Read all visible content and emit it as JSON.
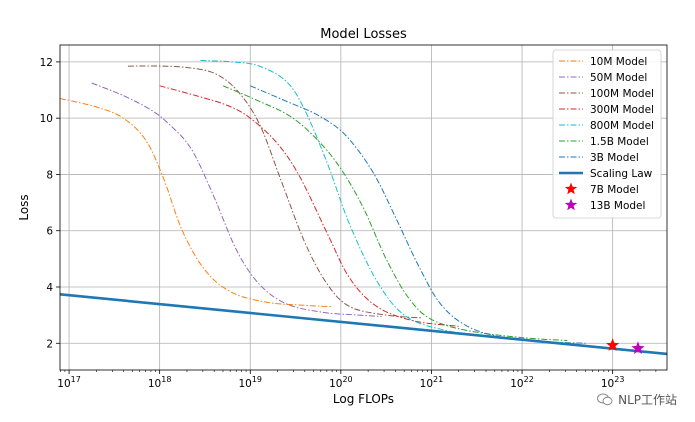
{
  "chart_data": {
    "type": "line",
    "title": "Model Losses",
    "xlabel": "Log FLOPs",
    "ylabel": "Loss",
    "x_scale": "log10",
    "xlim_exp": [
      16.9,
      23.6
    ],
    "ylim": [
      1.05,
      12.6
    ],
    "x_ticks": [
      {
        "exp": 17,
        "label": "10",
        "sup": "17"
      },
      {
        "exp": 18,
        "label": "10",
        "sup": "18"
      },
      {
        "exp": 19,
        "label": "10",
        "sup": "19"
      },
      {
        "exp": 20,
        "label": "10",
        "sup": "20"
      },
      {
        "exp": 21,
        "label": "10",
        "sup": "21"
      },
      {
        "exp": 22,
        "label": "10",
        "sup": "22"
      },
      {
        "exp": 23,
        "label": "10",
        "sup": "23"
      }
    ],
    "y_ticks": [
      2,
      4,
      6,
      8,
      10,
      12
    ],
    "grid": true,
    "legend_position": "top-right",
    "series": [
      {
        "name": "10M Model",
        "color": "#ff7f0e",
        "style": "dashdot",
        "points": [
          [
            16.9,
            10.7
          ],
          [
            17.3,
            10.4
          ],
          [
            17.6,
            10.0
          ],
          [
            17.85,
            9.2
          ],
          [
            18.05,
            7.8
          ],
          [
            18.25,
            6.0
          ],
          [
            18.5,
            4.6
          ],
          [
            18.8,
            3.8
          ],
          [
            19.2,
            3.45
          ],
          [
            19.6,
            3.35
          ],
          [
            19.9,
            3.3
          ]
        ]
      },
      {
        "name": "50M Model",
        "color": "#9467bd",
        "style": "dashdot",
        "points": [
          [
            17.25,
            11.25
          ],
          [
            17.6,
            10.8
          ],
          [
            17.9,
            10.3
          ],
          [
            18.1,
            9.8
          ],
          [
            18.35,
            8.9
          ],
          [
            18.6,
            7.2
          ],
          [
            18.85,
            5.3
          ],
          [
            19.1,
            4.1
          ],
          [
            19.4,
            3.4
          ],
          [
            19.8,
            3.1
          ],
          [
            20.2,
            3.0
          ],
          [
            20.45,
            2.95
          ]
        ]
      },
      {
        "name": "100M Model",
        "color": "#8c564b",
        "style": "dashdot",
        "points": [
          [
            17.65,
            11.85
          ],
          [
            18.0,
            11.85
          ],
          [
            18.3,
            11.8
          ],
          [
            18.6,
            11.6
          ],
          [
            18.85,
            11.0
          ],
          [
            19.1,
            9.8
          ],
          [
            19.35,
            7.7
          ],
          [
            19.6,
            5.6
          ],
          [
            19.85,
            4.1
          ],
          [
            20.1,
            3.3
          ],
          [
            20.5,
            3.0
          ],
          [
            20.9,
            2.9
          ]
        ]
      },
      {
        "name": "300M Model",
        "color": "#d62728",
        "style": "dashdot",
        "points": [
          [
            18.0,
            11.15
          ],
          [
            18.4,
            10.8
          ],
          [
            18.75,
            10.45
          ],
          [
            19.0,
            10.0
          ],
          [
            19.3,
            9.1
          ],
          [
            19.55,
            7.9
          ],
          [
            19.85,
            5.9
          ],
          [
            20.1,
            4.3
          ],
          [
            20.4,
            3.3
          ],
          [
            20.8,
            2.8
          ],
          [
            21.3,
            2.6
          ]
        ]
      },
      {
        "name": "800M Model",
        "color": "#17becf",
        "style": "dashdot",
        "points": [
          [
            18.45,
            12.05
          ],
          [
            18.8,
            12.0
          ],
          [
            19.1,
            11.85
          ],
          [
            19.4,
            11.3
          ],
          [
            19.6,
            10.3
          ],
          [
            19.85,
            8.4
          ],
          [
            20.1,
            6.2
          ],
          [
            20.4,
            4.2
          ],
          [
            20.7,
            3.0
          ],
          [
            21.1,
            2.5
          ],
          [
            21.7,
            2.2
          ],
          [
            22.2,
            2.1
          ]
        ]
      },
      {
        "name": "1.5B Model",
        "color": "#2ca02c",
        "style": "dashdot",
        "points": [
          [
            18.7,
            11.15
          ],
          [
            19.1,
            10.6
          ],
          [
            19.45,
            10.05
          ],
          [
            19.75,
            9.2
          ],
          [
            20.0,
            8.2
          ],
          [
            20.25,
            6.8
          ],
          [
            20.5,
            5.0
          ],
          [
            20.75,
            3.6
          ],
          [
            21.0,
            2.85
          ],
          [
            21.4,
            2.45
          ],
          [
            22.0,
            2.2
          ],
          [
            22.5,
            2.1
          ]
        ]
      },
      {
        "name": "3B Model",
        "color": "#1f77b4",
        "style": "dashdot",
        "points": [
          [
            19.0,
            11.15
          ],
          [
            19.4,
            10.6
          ],
          [
            19.75,
            10.1
          ],
          [
            20.05,
            9.4
          ],
          [
            20.35,
            8.1
          ],
          [
            20.6,
            6.5
          ],
          [
            20.85,
            4.8
          ],
          [
            21.1,
            3.4
          ],
          [
            21.4,
            2.6
          ],
          [
            21.8,
            2.2
          ],
          [
            22.3,
            2.05
          ],
          [
            22.7,
            2.0
          ]
        ]
      }
    ],
    "scaling_law": {
      "name": "Scaling Law",
      "color": "#1f77b4",
      "points": [
        [
          16.9,
          3.74
        ],
        [
          23.6,
          1.62
        ]
      ]
    },
    "markers": [
      {
        "name": "7B Model",
        "color": "#ff0000",
        "x_exp": 23.0,
        "y": 1.93
      },
      {
        "name": "13B Model",
        "color": "#bf00bf",
        "x_exp": 23.28,
        "y": 1.82
      }
    ]
  },
  "watermark": {
    "text": "NLP工作站",
    "icon": "wechat-icon"
  }
}
